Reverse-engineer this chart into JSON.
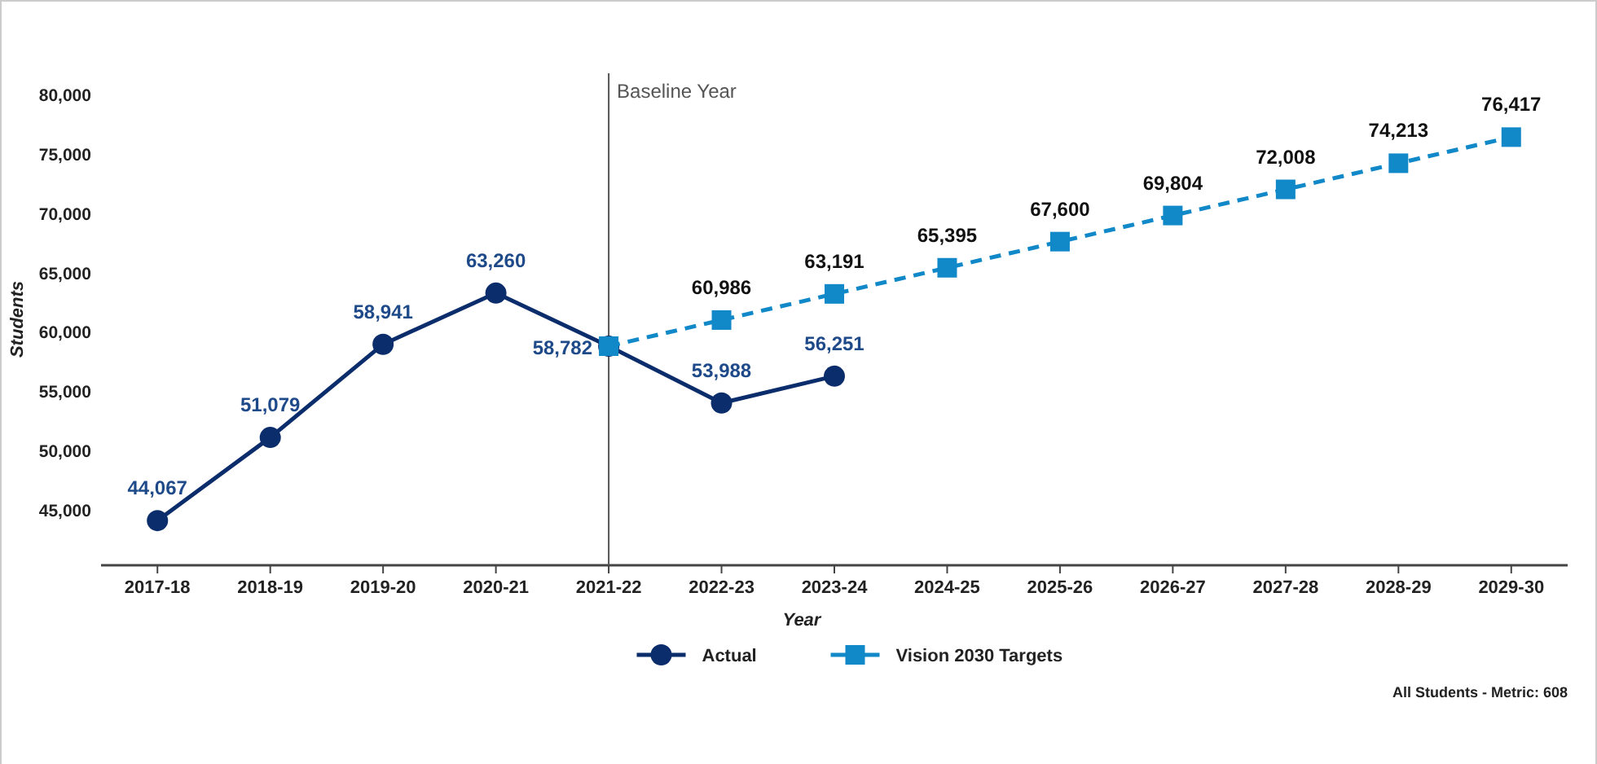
{
  "chart_data": {
    "type": "line",
    "xlabel": "Year",
    "ylabel": "Students",
    "categories": [
      "2017-18",
      "2018-19",
      "2019-20",
      "2020-21",
      "2021-22",
      "2022-23",
      "2023-24",
      "2024-25",
      "2025-26",
      "2026-27",
      "2027-28",
      "2028-29",
      "2029-30"
    ],
    "series": [
      {
        "name": "Actual",
        "color": "#0b2d6b",
        "marker": "circle",
        "line_style": "solid",
        "values": [
          44067,
          51079,
          58941,
          63260,
          58782,
          53988,
          56251,
          null,
          null,
          null,
          null,
          null,
          null
        ],
        "value_labels": [
          "44,067",
          "51,079",
          "58,941",
          "63,260",
          "58,782",
          "53,988",
          "56,251",
          null,
          null,
          null,
          null,
          null,
          null
        ]
      },
      {
        "name": "Vision 2030 Targets",
        "color": "#1188c8",
        "marker": "square",
        "line_style": "dashed",
        "values": [
          null,
          null,
          null,
          null,
          58782,
          60986,
          63191,
          65395,
          67600,
          69804,
          72008,
          74213,
          76417
        ],
        "value_labels": [
          null,
          null,
          null,
          null,
          null,
          "60,986",
          "63,191",
          "65,395",
          "67,600",
          "69,804",
          "72,008",
          "74,213",
          "76,417"
        ]
      }
    ],
    "ylim": [
      40300,
      81800
    ],
    "yticks": [
      {
        "value": 45000,
        "label": "45,000"
      },
      {
        "value": 50000,
        "label": "50,000"
      },
      {
        "value": 55000,
        "label": "55,000"
      },
      {
        "value": 60000,
        "label": "60,000"
      },
      {
        "value": 65000,
        "label": "65,000"
      },
      {
        "value": 70000,
        "label": "70,000"
      },
      {
        "value": 75000,
        "label": "75,000"
      },
      {
        "value": 80000,
        "label": "80,000"
      }
    ],
    "ref_lines": [
      {
        "axis": "x",
        "value": "2021-22",
        "label": "Baseline Year",
        "color": "#555555"
      }
    ],
    "grid": false,
    "legend": "bottom",
    "annotations": [
      "All Students - Metric: 608"
    ]
  }
}
